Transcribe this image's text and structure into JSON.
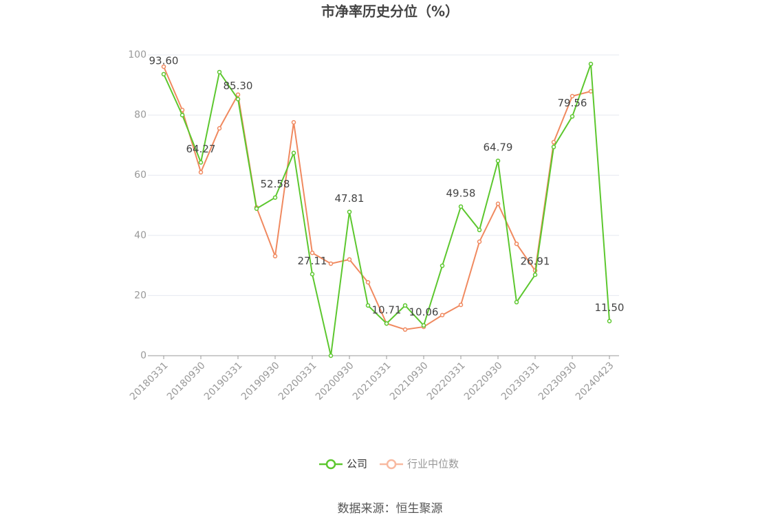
{
  "chart_data": {
    "type": "line",
    "title": "市净率历史分位（%）",
    "source": "数据来源：恒生聚源",
    "categories": [
      "20180331",
      null,
      "20180930",
      null,
      "20190331",
      null,
      "20190930",
      null,
      "20200331",
      null,
      "20200930",
      null,
      "20210331",
      null,
      "20210930",
      null,
      "20220331",
      null,
      "20220930",
      null,
      "20230331",
      null,
      "20230930",
      null,
      "20240423"
    ],
    "series": [
      {
        "name": "公司",
        "color": "#5cc72e",
        "values": [
          93.6,
          80,
          64.27,
          94.3,
          85.3,
          48.9,
          52.58,
          67.4,
          27.11,
          0,
          47.81,
          16.7,
          10.71,
          16.7,
          10.06,
          29.9,
          49.58,
          41.8,
          64.79,
          17.8,
          26.91,
          69.4,
          79.56,
          97.0,
          11.5
        ],
        "value_labels": [
          "93.60",
          null,
          "64.27",
          null,
          "85.30",
          null,
          "52.58",
          null,
          "27.11",
          null,
          "47.81",
          null,
          "10.71",
          null,
          "10.06",
          null,
          "49.58",
          null,
          "64.79",
          null,
          "26.91",
          null,
          "79.56",
          null,
          "11.50"
        ]
      },
      {
        "name": "行业中位数",
        "color": "#f0895f",
        "values": [
          96.1,
          81.7,
          61.0,
          75.6,
          86.8,
          49.3,
          33.1,
          77.6,
          34.2,
          30.6,
          32.0,
          24.4,
          10.7,
          8.7,
          9.6,
          13.5,
          16.9,
          37.9,
          50.5,
          37.2,
          28.3,
          71.0,
          86.3,
          87.9,
          null
        ]
      }
    ],
    "ylim": [
      0,
      100
    ],
    "yticks": [
      0,
      20,
      40,
      60,
      80,
      100
    ],
    "grid": true
  }
}
